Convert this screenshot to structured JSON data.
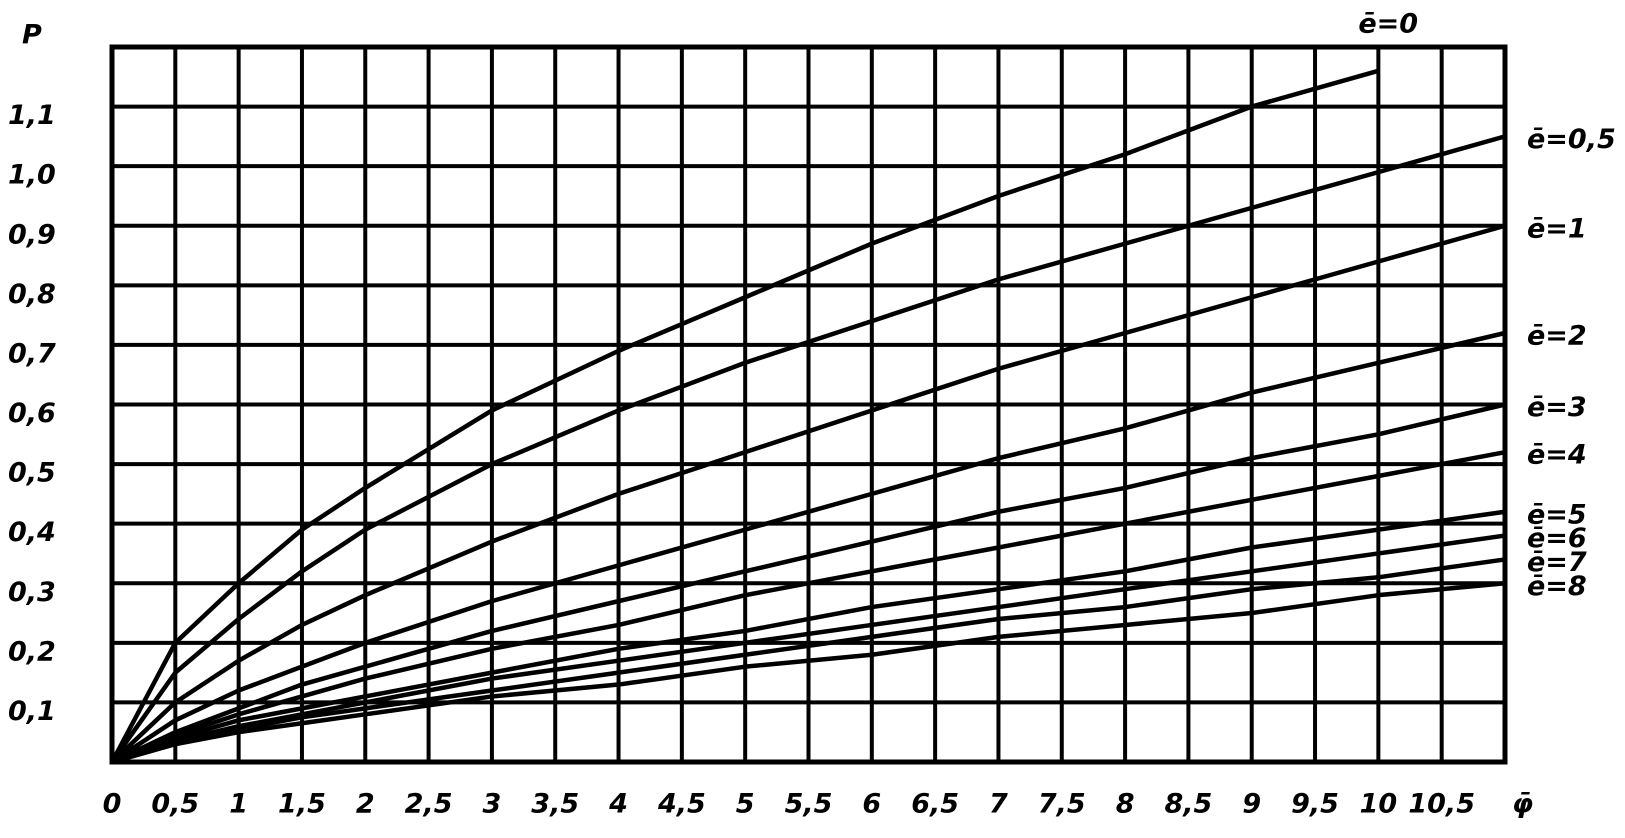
{
  "chart_data": {
    "type": "line",
    "y_label": "P",
    "x_label": "φ̄",
    "xlim": [
      0,
      11
    ],
    "ylim": [
      0,
      1.2
    ],
    "xticks": [
      0,
      {
        "value": 0.5,
        "label": "0,5"
      },
      1,
      {
        "value": 1.5,
        "label": "1,5"
      },
      2,
      {
        "value": 2.5,
        "label": "2,5"
      },
      3,
      {
        "value": 3.5,
        "label": "3,5"
      },
      4,
      {
        "value": 4.5,
        "label": "4,5"
      },
      5,
      {
        "value": 5.5,
        "label": "5,5"
      },
      6,
      {
        "value": 6.5,
        "label": "6,5"
      },
      7,
      {
        "value": 7.5,
        "label": "7,5"
      },
      8,
      {
        "value": 8.5,
        "label": "8,5"
      },
      9,
      {
        "value": 9.5,
        "label": "9,5"
      },
      10,
      {
        "value": 10.5,
        "label": "10,5"
      }
    ],
    "yticks": [
      {
        "value": 0.1,
        "label": "0,1"
      },
      {
        "value": 0.2,
        "label": "0,2"
      },
      {
        "value": 0.3,
        "label": "0,3"
      },
      {
        "value": 0.4,
        "label": "0,4"
      },
      {
        "value": 0.5,
        "label": "0,5"
      },
      {
        "value": 0.6,
        "label": "0,6"
      },
      {
        "value": 0.7,
        "label": "0,7"
      },
      {
        "value": 0.8,
        "label": "0,8"
      },
      {
        "value": 0.9,
        "label": "0,9"
      },
      {
        "value": 1.0,
        "label": "1,0"
      },
      {
        "value": 1.1,
        "label": "1,1"
      }
    ],
    "grid": true,
    "x": [
      0,
      0.5,
      1,
      1.5,
      2,
      3,
      4,
      5,
      6,
      7,
      8,
      9,
      10,
      11
    ],
    "series": [
      {
        "name": "ē=0",
        "color": "#000000",
        "values": [
          0,
          0.2,
          0.3,
          0.39,
          0.46,
          0.59,
          0.69,
          0.78,
          0.87,
          0.95,
          1.02,
          1.1,
          1.16,
          null
        ]
      },
      {
        "name": "ē=0,5",
        "color": "#000000",
        "values": [
          0,
          0.15,
          0.24,
          0.32,
          0.39,
          0.5,
          0.59,
          0.67,
          0.74,
          0.81,
          0.87,
          0.93,
          0.99,
          1.05
        ]
      },
      {
        "name": "ē=1",
        "color": "#000000",
        "values": [
          0,
          0.1,
          0.17,
          0.23,
          0.28,
          0.37,
          0.45,
          0.52,
          0.59,
          0.66,
          0.72,
          0.78,
          0.84,
          0.9
        ]
      },
      {
        "name": "ē=2",
        "color": "#000000",
        "values": [
          0,
          0.07,
          0.12,
          0.16,
          0.2,
          0.27,
          0.33,
          0.39,
          0.45,
          0.51,
          0.56,
          0.62,
          0.67,
          0.72
        ]
      },
      {
        "name": "ē=3",
        "color": "#000000",
        "values": [
          0,
          0.05,
          0.09,
          0.13,
          0.16,
          0.22,
          0.27,
          0.32,
          0.37,
          0.42,
          0.46,
          0.51,
          0.55,
          0.6
        ]
      },
      {
        "name": "ē=4",
        "color": "#000000",
        "values": [
          0,
          0.045,
          0.08,
          0.11,
          0.14,
          0.19,
          0.23,
          0.28,
          0.32,
          0.36,
          0.4,
          0.44,
          0.48,
          0.52
        ]
      },
      {
        "name": "ē=5",
        "color": "#000000",
        "values": [
          0,
          0.04,
          0.07,
          0.09,
          0.11,
          0.15,
          0.19,
          0.22,
          0.26,
          0.29,
          0.32,
          0.36,
          0.39,
          0.42
        ]
      },
      {
        "name": "ē=6",
        "color": "#000000",
        "values": [
          0,
          0.035,
          0.06,
          0.08,
          0.1,
          0.14,
          0.17,
          0.2,
          0.23,
          0.26,
          0.29,
          0.32,
          0.35,
          0.38
        ]
      },
      {
        "name": "ē=7",
        "color": "#000000",
        "values": [
          0,
          0.03,
          0.055,
          0.075,
          0.09,
          0.12,
          0.15,
          0.18,
          0.21,
          0.24,
          0.26,
          0.29,
          0.31,
          0.34
        ]
      },
      {
        "name": "ē=8",
        "color": "#000000",
        "values": [
          0,
          0.03,
          0.05,
          0.065,
          0.08,
          0.11,
          0.13,
          0.16,
          0.18,
          0.21,
          0.23,
          0.25,
          0.28,
          0.3
        ]
      }
    ]
  }
}
